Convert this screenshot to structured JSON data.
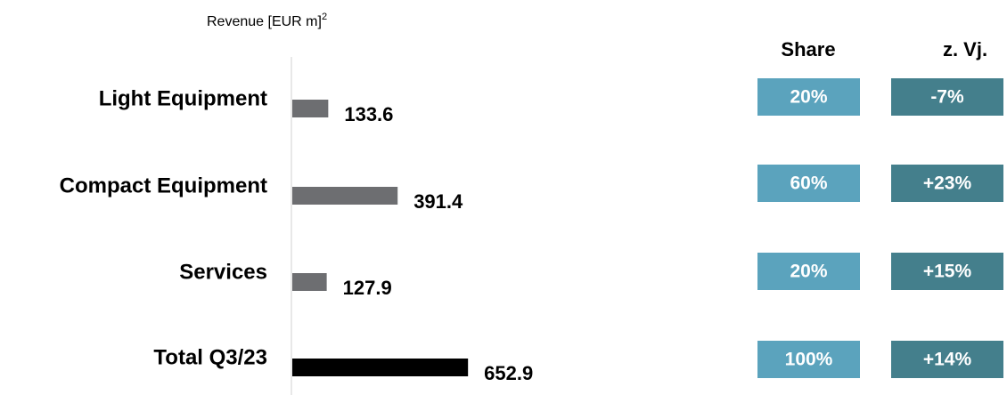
{
  "chart_data": {
    "type": "bar",
    "orientation": "horizontal",
    "title": "Revenue [EUR m]",
    "title_footnote": "2",
    "categories": [
      "Light Equipment",
      "Compact Equipment",
      "Services",
      "Total Q3/23"
    ],
    "values": [
      133.6,
      391.4,
      127.9,
      652.9
    ],
    "colors": [
      "#6d6e71",
      "#6d6e71",
      "#6d6e71",
      "#000000"
    ],
    "share": {
      "name": "Share",
      "color": "#5ba3bd",
      "values": [
        20,
        60,
        20,
        100
      ],
      "value_labels": [
        "20%",
        "60%",
        "20%",
        "100%"
      ]
    },
    "yoy": {
      "name": "z. Vj.",
      "color": "#447f8c",
      "values": [
        -7,
        23,
        15,
        14
      ],
      "value_labels": [
        "-7%",
        "+23%",
        "+15%",
        "+14%"
      ]
    }
  }
}
